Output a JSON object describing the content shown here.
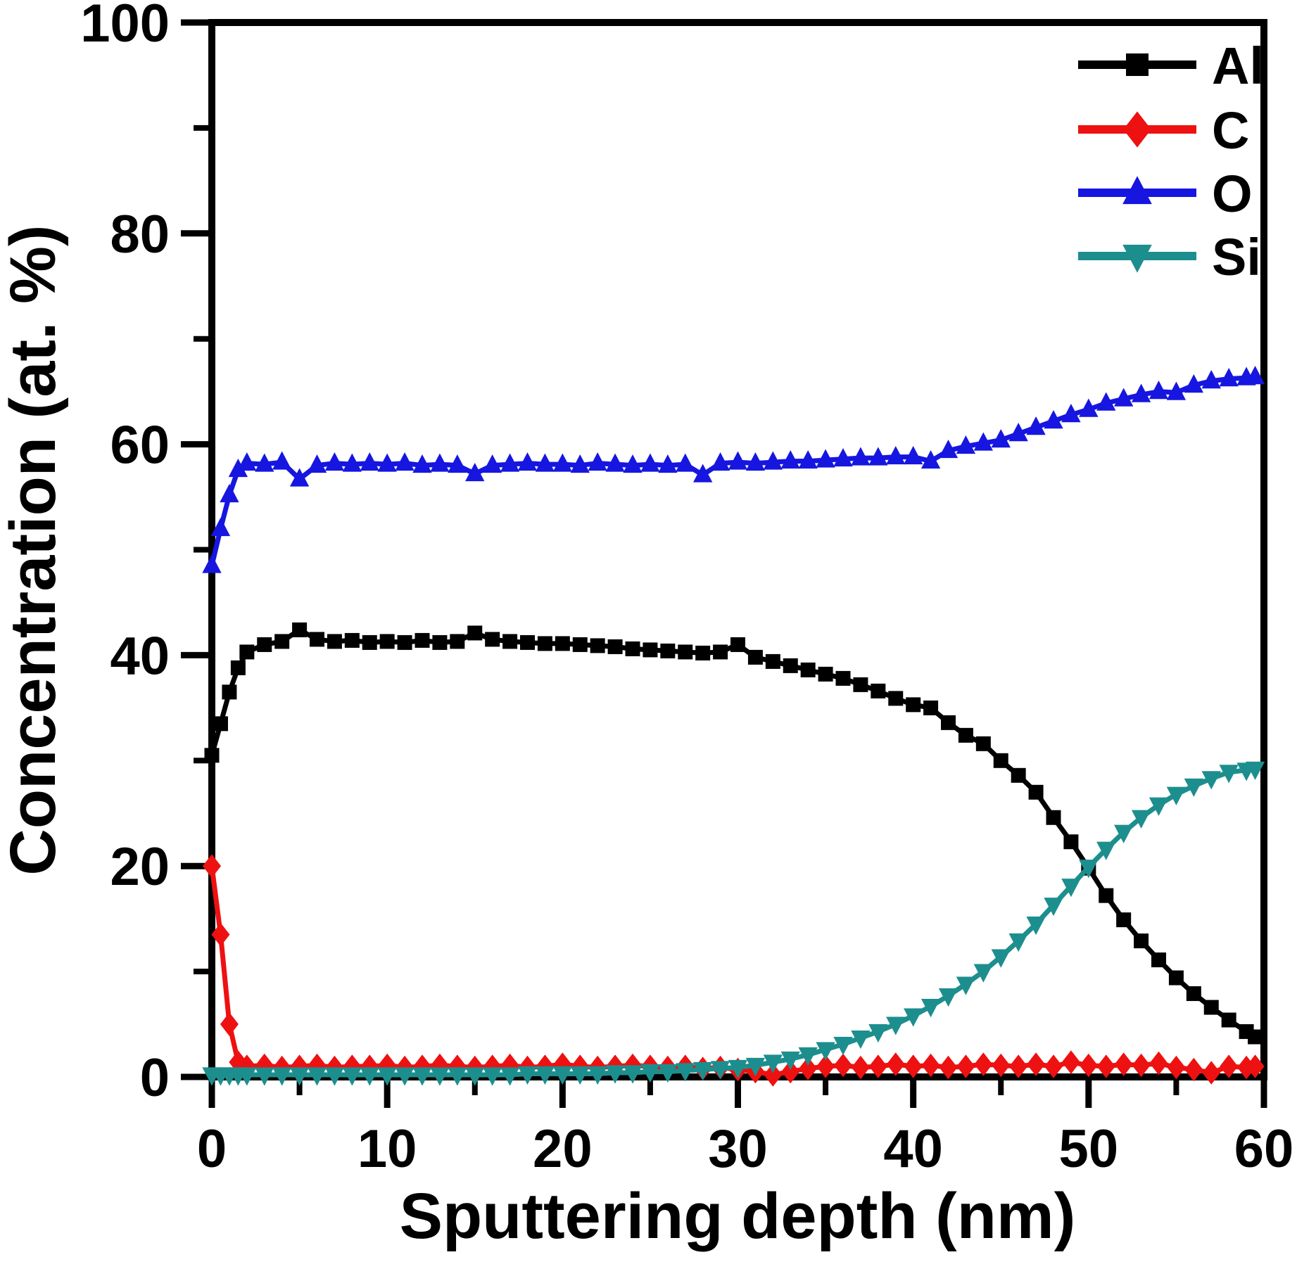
{
  "figure": {
    "background": "#ffffff",
    "axis_color": "#000000"
  },
  "chart_data": {
    "type": "line",
    "title": "",
    "xlabel": "Sputtering depth (nm)",
    "ylabel": "Concentration (at. %)",
    "xlim": [
      0,
      60
    ],
    "ylim": [
      0,
      100
    ],
    "x_major_ticks": [
      0,
      10,
      20,
      30,
      40,
      50,
      60
    ],
    "x_minor_ticks": [
      5,
      15,
      25,
      35,
      45,
      55
    ],
    "y_major_ticks": [
      0,
      20,
      40,
      60,
      80,
      100
    ],
    "y_minor_ticks": [
      10,
      30,
      50,
      70,
      90
    ],
    "grid": false,
    "legend_position": "top-right",
    "x": [
      0,
      0.5,
      1,
      1.5,
      2,
      3,
      4,
      5,
      6,
      7,
      8,
      9,
      10,
      11,
      12,
      13,
      14,
      15,
      16,
      17,
      18,
      19,
      20,
      21,
      22,
      23,
      24,
      25,
      26,
      27,
      28,
      29,
      30,
      31,
      32,
      33,
      34,
      35,
      36,
      37,
      38,
      39,
      40,
      41,
      42,
      43,
      44,
      45,
      46,
      47,
      48,
      49,
      50,
      51,
      52,
      53,
      54,
      55,
      56,
      57,
      58,
      59,
      59.5
    ],
    "series": [
      {
        "name": "Al",
        "color": "#000000",
        "marker": "square",
        "values": [
          30.5,
          33.5,
          36.5,
          38.8,
          40.3,
          41.0,
          41.3,
          42.4,
          41.5,
          41.3,
          41.4,
          41.2,
          41.3,
          41.2,
          41.4,
          41.2,
          41.3,
          42.1,
          41.5,
          41.3,
          41.2,
          41.1,
          41.1,
          41.0,
          40.9,
          40.8,
          40.6,
          40.5,
          40.4,
          40.3,
          40.2,
          40.3,
          41.0,
          39.8,
          39.4,
          39.0,
          38.6,
          38.2,
          37.8,
          37.2,
          36.6,
          35.9,
          35.3,
          35.0,
          33.6,
          32.4,
          31.6,
          30.0,
          28.6,
          27.0,
          24.6,
          22.3,
          19.8,
          17.2,
          14.9,
          12.9,
          11.1,
          9.4,
          7.9,
          6.6,
          5.4,
          4.3,
          3.8
        ]
      },
      {
        "name": "C",
        "color": "#ee1111",
        "marker": "diamond",
        "values": [
          20.0,
          13.5,
          5.0,
          1.4,
          1.0,
          1.1,
          0.9,
          1.0,
          1.1,
          0.9,
          1.0,
          1.0,
          1.1,
          0.9,
          1.0,
          1.1,
          1.0,
          0.9,
          1.0,
          1.1,
          0.9,
          1.0,
          1.2,
          1.0,
          0.9,
          1.0,
          1.1,
          1.0,
          0.9,
          1.0,
          0.8,
          0.9,
          0.7,
          0.5,
          0.2,
          0.5,
          0.8,
          1.0,
          1.1,
          0.9,
          1.0,
          1.2,
          1.0,
          1.1,
          0.9,
          1.0,
          1.2,
          1.1,
          1.0,
          1.2,
          1.0,
          1.4,
          1.1,
          1.0,
          1.2,
          1.1,
          1.3,
          0.9,
          0.7,
          0.4,
          1.0,
          0.9,
          1.0
        ]
      },
      {
        "name": "O",
        "color": "#1616e0",
        "marker": "triangle-up",
        "values": [
          48.5,
          52.0,
          55.2,
          57.6,
          58.2,
          58.1,
          58.3,
          56.7,
          58.0,
          58.2,
          58.1,
          58.2,
          58.1,
          58.2,
          58.0,
          58.1,
          58.0,
          57.2,
          58.0,
          58.1,
          58.2,
          58.1,
          58.1,
          58.0,
          58.2,
          58.1,
          58.0,
          58.1,
          58.0,
          58.1,
          57.1,
          58.2,
          58.3,
          58.2,
          58.3,
          58.4,
          58.4,
          58.5,
          58.6,
          58.7,
          58.7,
          58.8,
          58.8,
          58.4,
          59.4,
          59.8,
          60.1,
          60.4,
          61.0,
          61.6,
          62.2,
          62.8,
          63.3,
          63.9,
          64.3,
          64.7,
          65.0,
          64.9,
          65.6,
          66.0,
          66.2,
          66.3,
          66.4
        ]
      },
      {
        "name": "Si",
        "color": "#1d8e8e",
        "marker": "triangle-down",
        "values": [
          0.2,
          0.2,
          0.2,
          0.2,
          0.2,
          0.2,
          0.2,
          0.2,
          0.2,
          0.2,
          0.2,
          0.2,
          0.2,
          0.2,
          0.2,
          0.2,
          0.2,
          0.2,
          0.2,
          0.2,
          0.3,
          0.3,
          0.3,
          0.3,
          0.3,
          0.4,
          0.4,
          0.5,
          0.5,
          0.6,
          0.7,
          0.8,
          0.9,
          1.1,
          1.4,
          1.7,
          2.1,
          2.6,
          3.1,
          3.7,
          4.3,
          5.0,
          5.8,
          6.7,
          7.7,
          8.8,
          10.0,
          11.4,
          12.9,
          14.5,
          16.3,
          18.1,
          19.9,
          21.6,
          23.2,
          24.6,
          25.8,
          26.8,
          27.6,
          28.3,
          28.9,
          29.1,
          29.2
        ]
      }
    ]
  }
}
